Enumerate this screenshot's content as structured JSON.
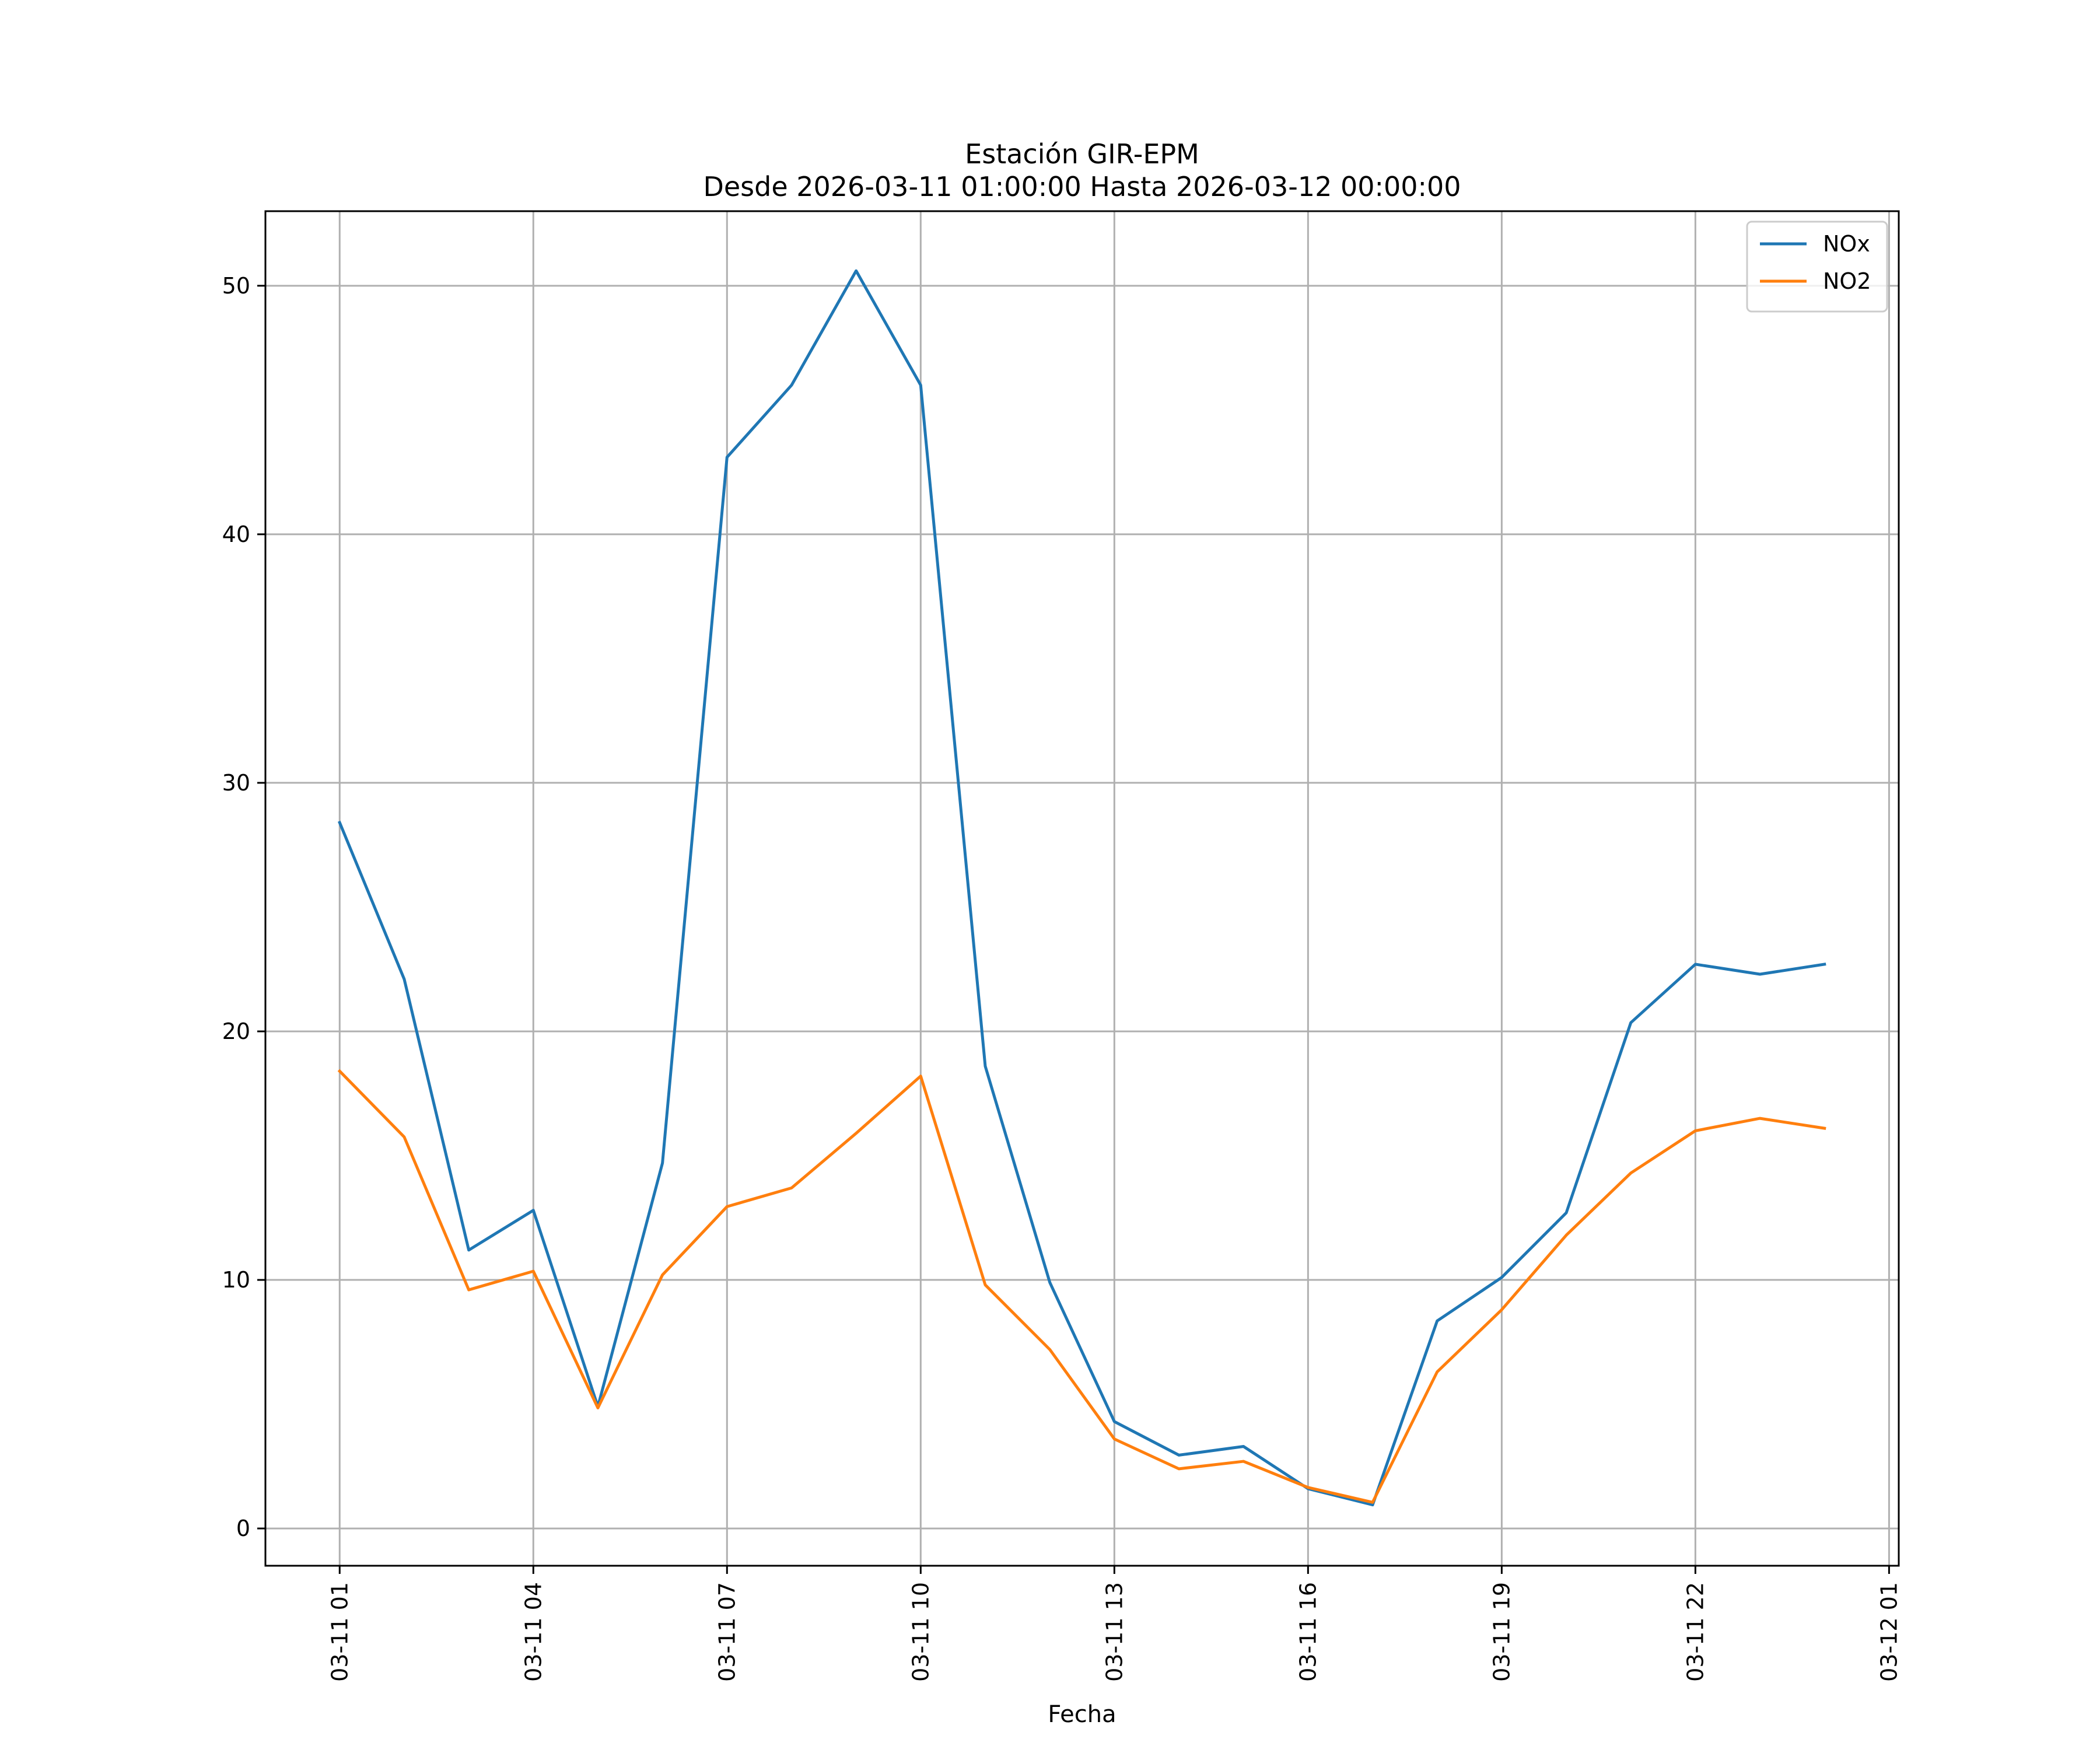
{
  "chart_data": {
    "type": "line",
    "title": "Estación GIR-EPM",
    "subtitle": "Desde 2026-03-11 01:00:00 Hasta 2026-03-12 00:00:00",
    "xlabel": "Fecha",
    "ylabel": "",
    "x": [
      "2026-03-11 01:00",
      "2026-03-11 02:00",
      "2026-03-11 03:00",
      "2026-03-11 04:00",
      "2026-03-11 05:00",
      "2026-03-11 06:00",
      "2026-03-11 07:00",
      "2026-03-11 08:00",
      "2026-03-11 09:00",
      "2026-03-11 10:00",
      "2026-03-11 11:00",
      "2026-03-11 12:00",
      "2026-03-11 13:00",
      "2026-03-11 14:00",
      "2026-03-11 15:00",
      "2026-03-11 16:00",
      "2026-03-11 17:00",
      "2026-03-11 18:00",
      "2026-03-11 19:00",
      "2026-03-11 20:00",
      "2026-03-11 21:00",
      "2026-03-11 22:00",
      "2026-03-11 23:00",
      "2026-03-12 00:00"
    ],
    "xticks": [
      "03-11 01",
      "03-11 04",
      "03-11 07",
      "03-11 10",
      "03-11 13",
      "03-11 16",
      "03-11 19",
      "03-11 22",
      "03-12 01"
    ],
    "yticks": [
      0,
      10,
      20,
      30,
      40,
      50
    ],
    "xlim": [
      "2026-03-10 23:51",
      "2026-03-12 01:09"
    ],
    "ylim": [
      -1.5,
      53
    ],
    "grid": true,
    "legend_position": "top-right",
    "series": [
      {
        "name": "NOx",
        "color": "#1f77b4",
        "values": [
          28.4,
          22.1,
          11.2,
          12.8,
          4.9,
          14.7,
          43.1,
          46.0,
          50.6,
          46.0,
          18.6,
          9.9,
          4.3,
          2.95,
          3.3,
          1.6,
          0.95,
          8.35,
          10.1,
          12.7,
          20.35,
          22.7,
          22.3,
          22.7
        ]
      },
      {
        "name": "NO2",
        "color": "#ff7f0e",
        "values": [
          18.4,
          15.75,
          9.6,
          10.35,
          4.85,
          10.2,
          12.95,
          13.7,
          15.9,
          18.2,
          9.8,
          7.2,
          3.6,
          2.4,
          2.7,
          1.65,
          1.05,
          6.3,
          8.8,
          11.8,
          14.3,
          16.0,
          16.5,
          16.1
        ]
      }
    ]
  }
}
